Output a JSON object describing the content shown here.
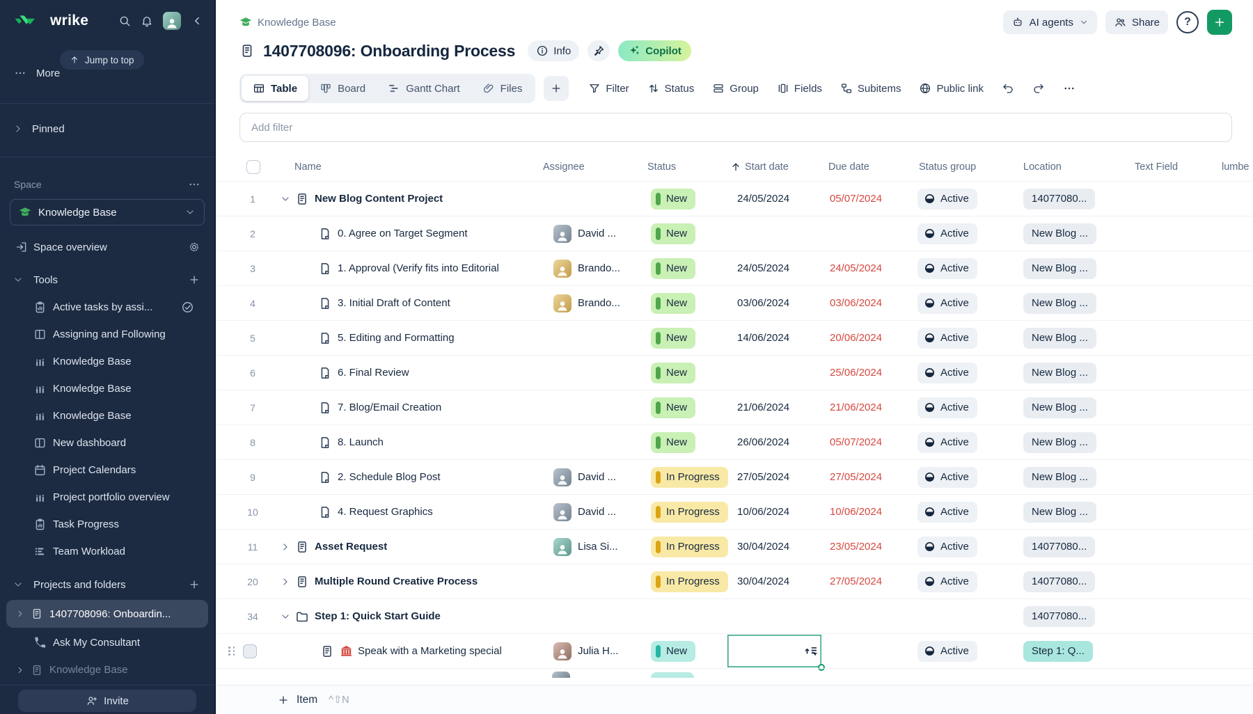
{
  "colors": {
    "sidebar_bg": "#1c2b42",
    "accent_green": "#139a63",
    "status_new_bg": "#c9f0b5",
    "status_new_bar": "#4fa64b",
    "status_progress_bg": "#f9e9a6",
    "status_progress_bar": "#dca414",
    "status_teal_bg": "#b6ece3",
    "status_teal_bar": "#27b5a3",
    "due_red": "#d6483f",
    "copilot_gradient": [
      "#8ce9c4",
      "#d6f39b"
    ]
  },
  "topbar": {
    "brand": "wrike",
    "jump_to_top": "Jump to top",
    "more": "More"
  },
  "sidebar": {
    "pinned": "Pinned",
    "space_label": "Space",
    "space_name": "Knowledge Base",
    "space_overview": "Space overview",
    "tools_label": "Tools",
    "tools": [
      {
        "label": "Active tasks by assi...",
        "icon": "clip",
        "trailing": "checkc"
      },
      {
        "label": "Assigning and Following",
        "icon": "split"
      },
      {
        "label": "Knowledge Base",
        "icon": "chart"
      },
      {
        "label": "Knowledge Base",
        "icon": "chart"
      },
      {
        "label": "Knowledge Base",
        "icon": "chart"
      },
      {
        "label": "New dashboard",
        "icon": "split"
      },
      {
        "label": "Project Calendars",
        "icon": "cal"
      },
      {
        "label": "Project portfolio overview",
        "icon": "chart"
      },
      {
        "label": "Task Progress",
        "icon": "clip"
      },
      {
        "label": "Team Workload",
        "icon": "work"
      }
    ],
    "projects_label": "Projects and folders",
    "projects": [
      {
        "label": "1407708096: Onboardin...",
        "icon": "proj",
        "selected": true,
        "expandable": true
      },
      {
        "label": "Ask My Consultant",
        "icon": "phone"
      },
      {
        "label": "Knowledge Base",
        "icon": "proj",
        "dimmed": true,
        "expandable": true
      }
    ],
    "invite": "Invite"
  },
  "header": {
    "breadcrumb": "Knowledge Base",
    "title": "1407708096: Onboarding Process",
    "info": "Info",
    "copilot": "Copilot",
    "ai_agents": "AI agents",
    "share": "Share"
  },
  "views": {
    "tabs": [
      {
        "label": "Table",
        "active": true
      },
      {
        "label": "Board",
        "active": false
      },
      {
        "label": "Gantt Chart",
        "active": false
      },
      {
        "label": "Files",
        "active": false
      }
    ]
  },
  "toolbar": {
    "filter": "Filter",
    "status": "Status",
    "group": "Group",
    "fields": "Fields",
    "subitems": "Subitems",
    "public_link": "Public link"
  },
  "filter_bar": {
    "placeholder": "Add filter"
  },
  "table": {
    "columns": [
      "Name",
      "Assignee",
      "Status",
      "Start date",
      "Due date",
      "Status group",
      "Location",
      "Text Field",
      "lumbe"
    ],
    "sort_column": "Start date",
    "sort_direction": "asc",
    "rows": [
      {
        "num": "1",
        "kind": "project",
        "expand": "down",
        "name": "New Blog Content Project",
        "assignee": null,
        "status": {
          "label": "New",
          "variant": "green"
        },
        "start": "24/05/2024",
        "due": "05/07/2024",
        "group": "Active",
        "location": "14077080..."
      },
      {
        "num": "2",
        "kind": "task",
        "name": "0. Agree on Target Segment",
        "assignee": {
          "name": "David ...",
          "avatar": "david"
        },
        "status": {
          "label": "New",
          "variant": "green"
        },
        "start": "",
        "due": "",
        "group": "Active",
        "location": "New Blog ..."
      },
      {
        "num": "3",
        "kind": "task",
        "name": "1. Approval (Verify fits into Editorial",
        "assignee": {
          "name": "Brando...",
          "avatar": "brando"
        },
        "status": {
          "label": "New",
          "variant": "green"
        },
        "start": "24/05/2024",
        "due": "24/05/2024",
        "group": "Active",
        "location": "New Blog ..."
      },
      {
        "num": "4",
        "kind": "task",
        "name": "3. Initial Draft of Content",
        "assignee": {
          "name": "Brando...",
          "avatar": "brando"
        },
        "status": {
          "label": "New",
          "variant": "green"
        },
        "start": "03/06/2024",
        "due": "03/06/2024",
        "group": "Active",
        "location": "New Blog ..."
      },
      {
        "num": "5",
        "kind": "task",
        "name": "5. Editing and Formatting",
        "assignee": null,
        "status": {
          "label": "New",
          "variant": "green"
        },
        "start": "14/06/2024",
        "due": "20/06/2024",
        "group": "Active",
        "location": "New Blog ..."
      },
      {
        "num": "6",
        "kind": "task",
        "name": "6. Final Review",
        "assignee": null,
        "status": {
          "label": "New",
          "variant": "green"
        },
        "start": "",
        "due": "25/06/2024",
        "group": "Active",
        "location": "New Blog ..."
      },
      {
        "num": "7",
        "kind": "task",
        "name": "7. Blog/Email Creation",
        "assignee": null,
        "status": {
          "label": "New",
          "variant": "green"
        },
        "start": "21/06/2024",
        "due": "21/06/2024",
        "group": "Active",
        "location": "New Blog ..."
      },
      {
        "num": "8",
        "kind": "task",
        "name": "8. Launch",
        "assignee": null,
        "status": {
          "label": "New",
          "variant": "green"
        },
        "start": "26/06/2024",
        "due": "05/07/2024",
        "group": "Active",
        "location": "New Blog ..."
      },
      {
        "num": "9",
        "kind": "task",
        "name": "2. Schedule Blog Post",
        "assignee": {
          "name": "David ...",
          "avatar": "david"
        },
        "status": {
          "label": "In Progress",
          "variant": "yellow"
        },
        "start": "27/05/2024",
        "due": "27/05/2024",
        "group": "Active",
        "location": "New Blog ..."
      },
      {
        "num": "10",
        "kind": "task",
        "name": "4. Request Graphics",
        "assignee": {
          "name": "David ...",
          "avatar": "david"
        },
        "status": {
          "label": "In Progress",
          "variant": "yellow"
        },
        "start": "10/06/2024",
        "due": "10/06/2024",
        "group": "Active",
        "location": "New Blog ..."
      },
      {
        "num": "11",
        "kind": "project",
        "expand": "right",
        "name": "Asset Request",
        "assignee": {
          "name": "Lisa Si...",
          "avatar": "lisa"
        },
        "status": {
          "label": "In Progress",
          "variant": "yellow"
        },
        "start": "30/04/2024",
        "due": "23/05/2024",
        "group": "Active",
        "location": "14077080..."
      },
      {
        "num": "20",
        "kind": "project",
        "expand": "right",
        "name": "Multiple Round Creative Process",
        "assignee": null,
        "status": {
          "label": "In Progress",
          "variant": "yellow"
        },
        "start": "30/04/2024",
        "due": "27/05/2024",
        "group": "Active",
        "location": "14077080..."
      },
      {
        "num": "34",
        "kind": "folder",
        "expand": "down",
        "name": "Step 1: Quick Start Guide",
        "assignee": null,
        "status": null,
        "start": "",
        "due": "",
        "group": "",
        "location": "14077080..."
      },
      {
        "num": "",
        "kind": "hover",
        "name": "Speak with a Marketing special",
        "assignee": {
          "name": "Julia H...",
          "avatar": "julia"
        },
        "status": {
          "label": "New",
          "variant": "teal"
        },
        "start": "",
        "due": "",
        "group": "Active",
        "location": "Step 1: Q...",
        "location_variant": "teal",
        "focused_cell": "start"
      }
    ]
  },
  "footer": {
    "add_label": "Item",
    "shortcut": "^⇧N"
  }
}
